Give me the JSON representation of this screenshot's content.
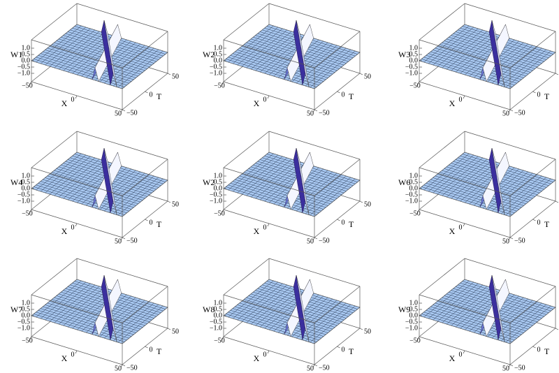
{
  "chart_data": [
    {
      "type": "surface",
      "zlabel": "W1",
      "xlabel": "X",
      "ylabel": "T",
      "xlim": [
        -50,
        50
      ],
      "ylim": [
        -50,
        50
      ],
      "zlim": [
        -1,
        1
      ],
      "xticks": [
        {
          "value": -50,
          "label": "−50"
        },
        0,
        50
      ],
      "yticks": [
        {
          "value": -50,
          "label": "−50"
        },
        0,
        50
      ],
      "zticks": [
        {
          "value": 1,
          "label": "1.0"
        },
        0.5,
        {
          "value": 0,
          "label": "0.0"
        },
        {
          "value": -0.5,
          "label": "−0.5"
        },
        {
          "value": -1,
          "label": "−1.0"
        }
      ]
    },
    {
      "type": "surface",
      "zlabel": "W2",
      "xlabel": "X",
      "ylabel": "T",
      "xlim": [
        -50,
        50
      ],
      "ylim": [
        -50,
        50
      ],
      "zlim": [
        -1,
        1
      ],
      "xticks": [
        {
          "value": -50,
          "label": "−50"
        },
        0,
        50
      ],
      "yticks": [
        {
          "value": -50,
          "label": "−50"
        },
        0,
        50
      ],
      "zticks": [
        {
          "value": 1,
          "label": "1.0"
        },
        0.5,
        {
          "value": 0,
          "label": "0.0"
        },
        {
          "value": -0.5,
          "label": "−0.5"
        },
        {
          "value": -1,
          "label": "−1.0"
        }
      ]
    },
    {
      "type": "surface",
      "zlabel": "W3",
      "xlabel": "X",
      "ylabel": "T",
      "xlim": [
        -50,
        50
      ],
      "ylim": [
        -50,
        50
      ],
      "zlim": [
        -1,
        1
      ],
      "xticks": [
        {
          "value": -50,
          "label": "−50"
        },
        0,
        50
      ],
      "yticks": [
        {
          "value": -50,
          "label": "−50"
        },
        0,
        50
      ],
      "zticks": [
        {
          "value": 1,
          "label": "1.0"
        },
        0.5,
        {
          "value": 0,
          "label": "0.0"
        },
        {
          "value": -0.5,
          "label": "−0.5"
        },
        {
          "value": -1,
          "label": "−1.0"
        }
      ]
    },
    {
      "type": "surface",
      "zlabel": "W4",
      "xlabel": "X",
      "ylabel": "T",
      "xlim": [
        -50,
        50
      ],
      "ylim": [
        -50,
        50
      ],
      "zlim": [
        -1,
        1
      ],
      "xticks": [
        {
          "value": -50,
          "label": "−50"
        },
        0,
        50
      ],
      "yticks": [
        {
          "value": -50,
          "label": "−50"
        },
        0,
        50
      ],
      "zticks": [
        {
          "value": 1,
          "label": "1.0"
        },
        0.5,
        {
          "value": 0,
          "label": "0.0"
        },
        {
          "value": -0.5,
          "label": "−0.5"
        },
        {
          "value": -1,
          "label": "−1.0"
        }
      ]
    },
    {
      "type": "surface",
      "zlabel": "W2",
      "xlabel": "X",
      "ylabel": "T",
      "xlim": [
        -50,
        50
      ],
      "ylim": [
        -50,
        50
      ],
      "zlim": [
        -1,
        1
      ],
      "xticks": [
        {
          "value": -50,
          "label": "−50"
        },
        0,
        50
      ],
      "yticks": [
        {
          "value": -50,
          "label": "−50"
        },
        0,
        50
      ],
      "zticks": [
        {
          "value": 1,
          "label": "1.0"
        },
        0.5,
        {
          "value": 0,
          "label": "0.0"
        },
        {
          "value": -0.5,
          "label": "−0.5"
        },
        {
          "value": -1,
          "label": "−1.0"
        }
      ]
    },
    {
      "type": "surface",
      "zlabel": "W6",
      "xlabel": "X",
      "ylabel": "T",
      "xlim": [
        -50,
        50
      ],
      "ylim": [
        -50,
        50
      ],
      "zlim": [
        -1,
        1
      ],
      "xticks": [
        {
          "value": -50,
          "label": "−50"
        },
        0,
        50
      ],
      "yticks": [
        {
          "value": -50,
          "label": "−50"
        },
        0,
        50
      ],
      "zticks": [
        {
          "value": 1,
          "label": "1.0"
        },
        0.5,
        {
          "value": 0,
          "label": "0.0"
        },
        {
          "value": -0.5,
          "label": "−0.5"
        },
        {
          "value": -1,
          "label": "−1.0"
        }
      ]
    },
    {
      "type": "surface",
      "zlabel": "W7",
      "xlabel": "X",
      "ylabel": "T",
      "xlim": [
        -50,
        50
      ],
      "ylim": [
        -50,
        50
      ],
      "zlim": [
        -1,
        1
      ],
      "xticks": [
        {
          "value": -50,
          "label": "−50"
        },
        0,
        50
      ],
      "yticks": [
        {
          "value": -50,
          "label": "−50"
        },
        0,
        50
      ],
      "zticks": [
        {
          "value": 1,
          "label": "1.0"
        },
        0.5,
        {
          "value": 0,
          "label": "0.0"
        },
        {
          "value": -0.5,
          "label": "−0.5"
        },
        {
          "value": -1,
          "label": "−1.0"
        }
      ]
    },
    {
      "type": "surface",
      "zlabel": "W8",
      "xlabel": "X",
      "ylabel": "T",
      "xlim": [
        -50,
        50
      ],
      "ylim": [
        -50,
        50
      ],
      "zlim": [
        -1,
        1
      ],
      "xticks": [
        {
          "value": -50,
          "label": "−50"
        },
        0,
        50
      ],
      "yticks": [
        {
          "value": -50,
          "label": "−50"
        },
        0,
        50
      ],
      "zticks": [
        {
          "value": 1,
          "label": "1.0"
        },
        0.5,
        {
          "value": 0,
          "label": "0.0"
        },
        {
          "value": -0.5,
          "label": "−0.5"
        },
        {
          "value": -1,
          "label": "−1.0"
        }
      ]
    },
    {
      "type": "surface",
      "zlabel": "W9",
      "xlabel": "X",
      "ylabel": "T",
      "xlim": [
        -50,
        50
      ],
      "ylim": [
        -50,
        50
      ],
      "zlim": [
        -1,
        1
      ],
      "xticks": [
        {
          "value": -50,
          "label": "−50"
        },
        0,
        50
      ],
      "yticks": [
        {
          "value": -50,
          "label": "−50"
        },
        0,
        50
      ],
      "zticks": [
        {
          "value": 1,
          "label": "1.0"
        },
        0.5,
        {
          "value": 0,
          "label": "0.0"
        },
        {
          "value": -0.5,
          "label": "−0.5"
        },
        {
          "value": -1,
          "label": "−1.0"
        }
      ]
    }
  ]
}
